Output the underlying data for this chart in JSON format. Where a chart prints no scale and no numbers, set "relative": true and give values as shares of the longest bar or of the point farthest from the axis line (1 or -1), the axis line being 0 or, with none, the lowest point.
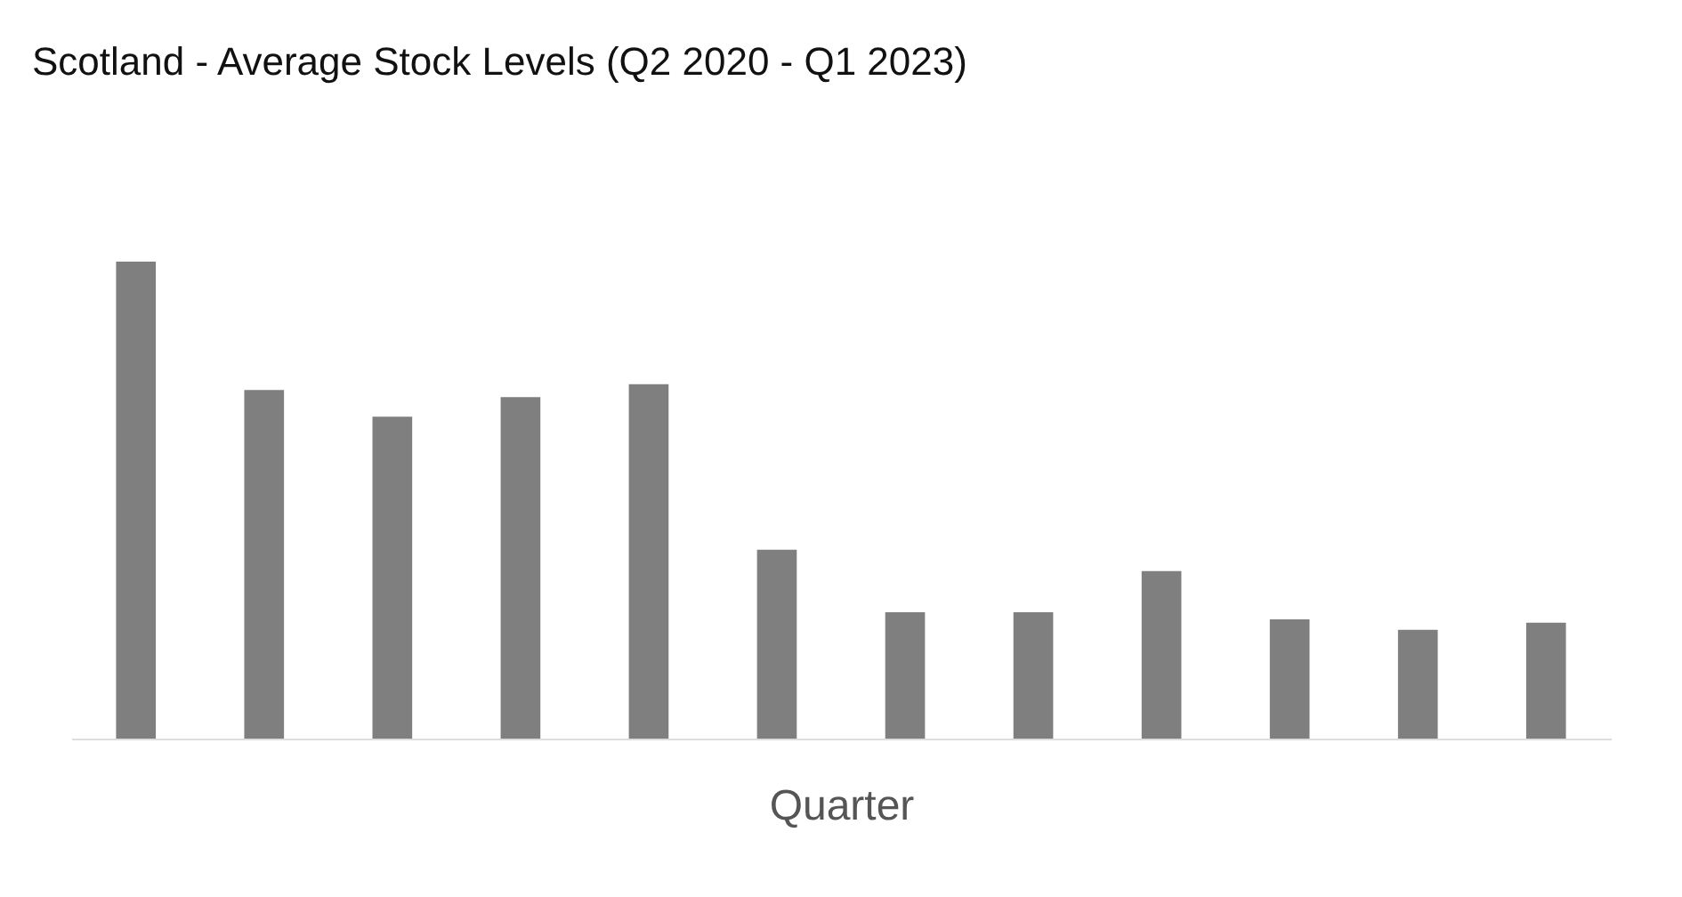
{
  "chart_data": {
    "type": "bar",
    "title": "Scotland - Average Stock Levels (Q2 2020 - Q1 2023)",
    "xlabel": "Quarter",
    "relative": true,
    "categories": [
      null,
      null,
      null,
      null,
      null,
      null,
      null,
      null,
      null,
      null,
      null,
      null
    ],
    "values": [
      1,
      0.731,
      0.675,
      0.716,
      0.743,
      0.396,
      0.265,
      0.265,
      0.351,
      0.25,
      0.228,
      0.243
    ],
    "color": "#7f7f7f",
    "grid": false
  }
}
